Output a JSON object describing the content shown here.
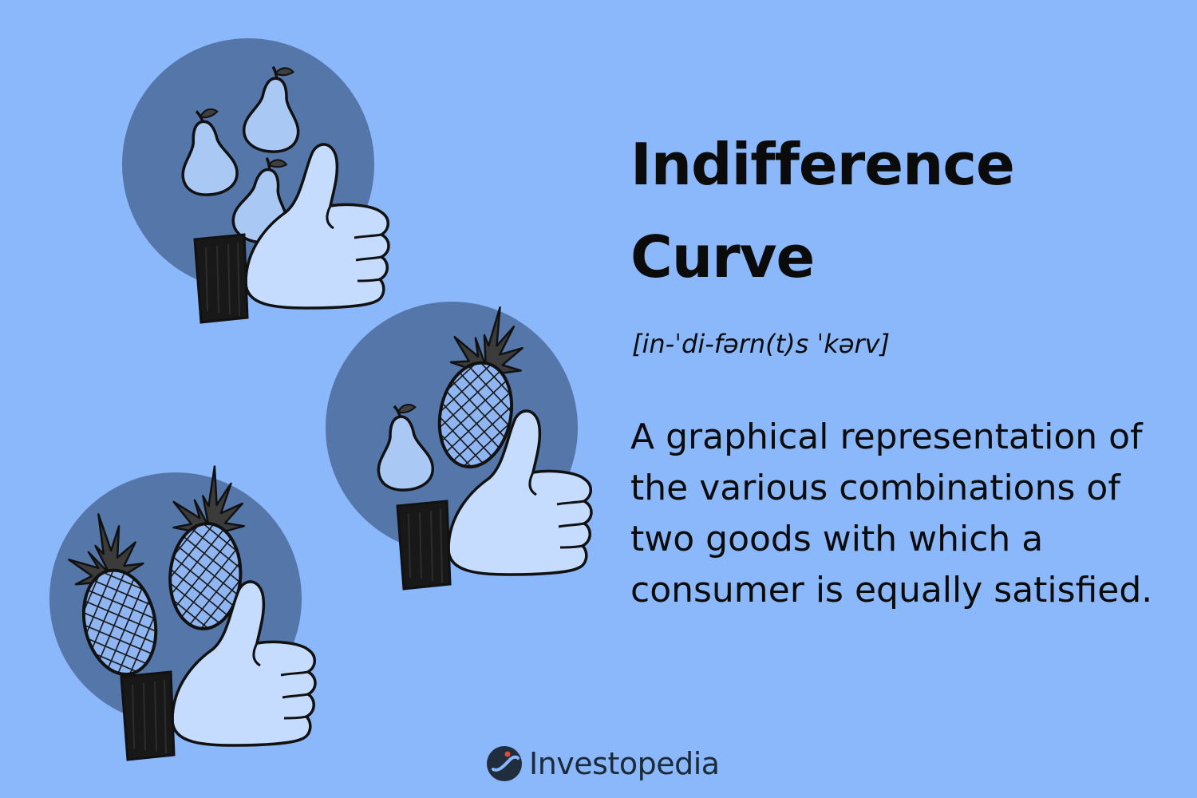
{
  "title_lines": [
    "Indifference",
    "Curve"
  ],
  "pronunciation": "[in-ˈdi-fərn(t)s ˈkərv]",
  "definition": "A graphical representation of the various combinations of two goods with which a consumer is equally satisfied.",
  "brand": {
    "name": "Investopedia",
    "logo_icon": "investopedia-logo-icon"
  },
  "colors": {
    "background": "#8bb8fb",
    "circle": "#5576a8",
    "hand": "#c5dcff",
    "cuff": "#181818",
    "text": "#0b0b0b"
  },
  "illustrations": [
    {
      "name": "three-pears-thumbs-up",
      "contents": [
        "pear-icon",
        "pear-icon",
        "pear-icon",
        "thumbs-up-icon"
      ]
    },
    {
      "name": "pineapple-and-pear-thumbs-up",
      "contents": [
        "pineapple-icon",
        "pear-icon",
        "thumbs-up-icon"
      ]
    },
    {
      "name": "two-pineapples-thumbs-up",
      "contents": [
        "pineapple-icon",
        "pineapple-icon",
        "thumbs-up-icon"
      ]
    }
  ]
}
